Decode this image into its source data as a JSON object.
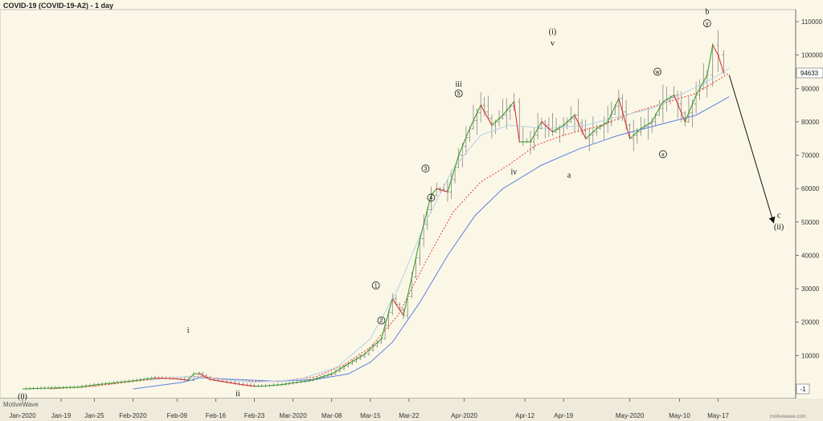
{
  "header": {
    "title": "COVID-19 (COVID-19-A2) - 1 day"
  },
  "watermark": {
    "left": "MotiveWave",
    "right": "motivewave.com"
  },
  "colors": {
    "background": "#fbf7e7",
    "ma_blue": "#5b7fe0",
    "ma_red": "#e83c2c",
    "ma_lightblue": "#b8d4e8",
    "trend_up": "#3ba02c",
    "trend_down": "#e03030",
    "bars": "#777777"
  },
  "chart_data": {
    "type": "line",
    "title": "COVID-19 (COVID-19-A2) - 1 day",
    "x_ticks": [
      "Jan-2020",
      "Jan-19",
      "Jan-25",
      "Feb-2020",
      "Feb-09",
      "Feb-16",
      "Feb-23",
      "Mar-2020",
      "Mar-08",
      "Mar-15",
      "Mar-22",
      "Apr-2020",
      "Apr-12",
      "Apr-19",
      "May-2020",
      "May-10",
      "May-17"
    ],
    "y_ticks": [
      110000,
      100000,
      90000,
      80000,
      70000,
      60000,
      50000,
      40000,
      30000,
      20000,
      10000
    ],
    "y_tick_labels": [
      "110000",
      "100000",
      "90000",
      "80000",
      "70000",
      "60000",
      "50000",
      "40000",
      "30000",
      "20000",
      "10000"
    ],
    "ylim": [
      -1,
      116000
    ],
    "last_price_label": "94633",
    "bottom_axis_label": "-1",
    "close_series": [
      [
        "2020-01-12",
        0
      ],
      [
        "2020-01-22",
        500
      ],
      [
        "2020-01-25",
        1200
      ],
      [
        "2020-02-01",
        2400
      ],
      [
        "2020-02-05",
        3300
      ],
      [
        "2020-02-09",
        3000
      ],
      [
        "2020-02-11",
        2600
      ],
      [
        "2020-02-12",
        4500
      ],
      [
        "2020-02-13",
        4600
      ],
      [
        "2020-02-15",
        2800
      ],
      [
        "2020-02-18",
        2000
      ],
      [
        "2020-02-21",
        1200
      ],
      [
        "2020-02-23",
        800
      ],
      [
        "2020-02-25",
        900
      ],
      [
        "2020-02-28",
        1300
      ],
      [
        "2020-03-01",
        1800
      ],
      [
        "2020-03-04",
        2500
      ],
      [
        "2020-03-08",
        4500
      ],
      [
        "2020-03-11",
        7500
      ],
      [
        "2020-03-14",
        10500
      ],
      [
        "2020-03-17",
        15000
      ],
      [
        "2020-03-19",
        27000
      ],
      [
        "2020-03-21",
        22000
      ],
      [
        "2020-03-24",
        45000
      ],
      [
        "2020-03-26",
        58000
      ],
      [
        "2020-03-27",
        60000
      ],
      [
        "2020-03-29",
        59000
      ],
      [
        "2020-03-31",
        70000
      ],
      [
        "2020-04-02",
        78000
      ],
      [
        "2020-04-04",
        85000
      ],
      [
        "2020-04-06",
        79000
      ],
      [
        "2020-04-08",
        82000
      ],
      [
        "2020-04-10",
        86000
      ],
      [
        "2020-04-11",
        74000
      ],
      [
        "2020-04-13",
        74000
      ],
      [
        "2020-04-15",
        80000
      ],
      [
        "2020-04-17",
        77000
      ],
      [
        "2020-04-19",
        79000
      ],
      [
        "2020-04-21",
        82000
      ],
      [
        "2020-04-23",
        75000
      ],
      [
        "2020-04-25",
        78000
      ],
      [
        "2020-04-27",
        80000
      ],
      [
        "2020-04-29",
        87000
      ],
      [
        "2020-05-01",
        75000
      ],
      [
        "2020-05-03",
        78000
      ],
      [
        "2020-05-05",
        80000
      ],
      [
        "2020-05-07",
        86000
      ],
      [
        "2020-05-09",
        88000
      ],
      [
        "2020-05-11",
        80000
      ],
      [
        "2020-05-13",
        88000
      ],
      [
        "2020-05-15",
        94000
      ],
      [
        "2020-05-16",
        103000
      ],
      [
        "2020-05-17",
        100000
      ],
      [
        "2020-05-18",
        94633
      ]
    ],
    "series": [
      {
        "values": [
          [
            "2020-02-01",
            0
          ],
          [
            "2020-02-10",
            2000
          ],
          [
            "2020-02-13",
            3300
          ],
          [
            "2020-02-20",
            2800
          ],
          [
            "2020-02-27",
            2300
          ],
          [
            "2020-03-05",
            2800
          ],
          [
            "2020-03-11",
            4500
          ],
          [
            "2020-03-15",
            8000
          ],
          [
            "2020-03-19",
            14000
          ],
          [
            "2020-03-24",
            26000
          ],
          [
            "2020-03-29",
            40000
          ],
          [
            "2020-04-03",
            52000
          ],
          [
            "2020-04-08",
            60000
          ],
          [
            "2020-04-15",
            67000
          ],
          [
            "2020-04-22",
            72000
          ],
          [
            "2020-04-29",
            76000
          ],
          [
            "2020-05-06",
            79000
          ],
          [
            "2020-05-13",
            82000
          ],
          [
            "2020-05-19",
            87500
          ]
        ]
      },
      {
        "values": [
          [
            "2020-01-17",
            0
          ],
          [
            "2020-01-25",
            800
          ],
          [
            "2020-02-01",
            2300
          ],
          [
            "2020-02-09",
            3500
          ],
          [
            "2020-02-13",
            3800
          ],
          [
            "2020-02-20",
            2400
          ],
          [
            "2020-02-27",
            2200
          ],
          [
            "2020-03-05",
            3600
          ],
          [
            "2020-03-10",
            7000
          ],
          [
            "2020-03-15",
            12500
          ],
          [
            "2020-03-20",
            22000
          ],
          [
            "2020-03-25",
            38000
          ],
          [
            "2020-03-30",
            53000
          ],
          [
            "2020-04-04",
            62000
          ],
          [
            "2020-04-09",
            67000
          ],
          [
            "2020-04-14",
            73000
          ],
          [
            "2020-04-19",
            76000
          ],
          [
            "2020-04-26",
            79000
          ],
          [
            "2020-05-02",
            83000
          ],
          [
            "2020-05-08",
            86000
          ],
          [
            "2020-05-13",
            88500
          ],
          [
            "2020-05-19",
            94633
          ]
        ]
      },
      {
        "values": [
          [
            "2020-02-04",
            2600
          ],
          [
            "2020-02-11",
            3800
          ],
          [
            "2020-02-16",
            3000
          ],
          [
            "2020-02-23",
            2000
          ],
          [
            "2020-03-02",
            2800
          ],
          [
            "2020-03-09",
            6500
          ],
          [
            "2020-03-15",
            15000
          ],
          [
            "2020-03-20",
            30000
          ],
          [
            "2020-03-25",
            50000
          ],
          [
            "2020-03-30",
            66000
          ],
          [
            "2020-04-04",
            76000
          ],
          [
            "2020-04-09",
            79000
          ],
          [
            "2020-04-16",
            78000
          ],
          [
            "2020-04-23",
            79000
          ],
          [
            "2020-04-30",
            82000
          ],
          [
            "2020-05-05",
            84000
          ],
          [
            "2020-05-10",
            88000
          ],
          [
            "2020-05-15",
            92000
          ],
          [
            "2020-05-19",
            96000
          ]
        ]
      }
    ],
    "projection": [
      [
        "2020-05-19",
        94000
      ],
      [
        "2020-05-27",
        50000
      ]
    ],
    "wave_labels": [
      {
        "label": "(0)",
        "x": "2020-01-12",
        "y": -2300,
        "circle": false,
        "wave": true
      },
      {
        "label": "i",
        "x": "2020-02-11",
        "y": 17500,
        "circle": false,
        "wave": true
      },
      {
        "label": "ii",
        "x": "2020-02-20",
        "y": -1500,
        "circle": false,
        "wave": true
      },
      {
        "label": "1",
        "x": "2020-03-16",
        "y": 31000,
        "circle": true,
        "wave": false
      },
      {
        "label": "2",
        "x": "2020-03-17",
        "y": 20500,
        "circle": true,
        "wave": false
      },
      {
        "label": "3",
        "x": "2020-03-25",
        "y": 66000,
        "circle": true,
        "wave": false
      },
      {
        "label": "4",
        "x": "2020-03-26",
        "y": 57300,
        "circle": true,
        "wave": false
      },
      {
        "label": "5",
        "x": "2020-03-31",
        "y": 88500,
        "circle": true,
        "wave": false
      },
      {
        "label": "iii",
        "x": "2020-03-31",
        "y": 91300,
        "circle": false,
        "wave": true
      },
      {
        "label": "iv",
        "x": "2020-04-10",
        "y": 65000,
        "circle": false,
        "wave": true
      },
      {
        "label": "(i)",
        "x": "2020-04-17",
        "y": 107000,
        "circle": false,
        "wave": true
      },
      {
        "label": "v",
        "x": "2020-04-17",
        "y": 103500,
        "circle": false,
        "wave": true
      },
      {
        "label": "a",
        "x": "2020-04-20",
        "y": 64000,
        "circle": false,
        "wave": true
      },
      {
        "label": "w",
        "x": "2020-05-06",
        "y": 95000,
        "circle": true,
        "wave": false
      },
      {
        "label": "x",
        "x": "2020-05-07",
        "y": 70300,
        "circle": true,
        "wave": false
      },
      {
        "label": "b",
        "x": "2020-05-15",
        "y": 113000,
        "circle": false,
        "wave": true
      },
      {
        "label": "y",
        "x": "2020-05-15",
        "y": 109500,
        "circle": true,
        "wave": false
      },
      {
        "label": "c",
        "x": "2020-05-28",
        "y": 52000,
        "circle": false,
        "wave": true
      },
      {
        "label": "(ii)",
        "x": "2020-05-28",
        "y": 48500,
        "circle": false,
        "wave": true
      }
    ]
  }
}
